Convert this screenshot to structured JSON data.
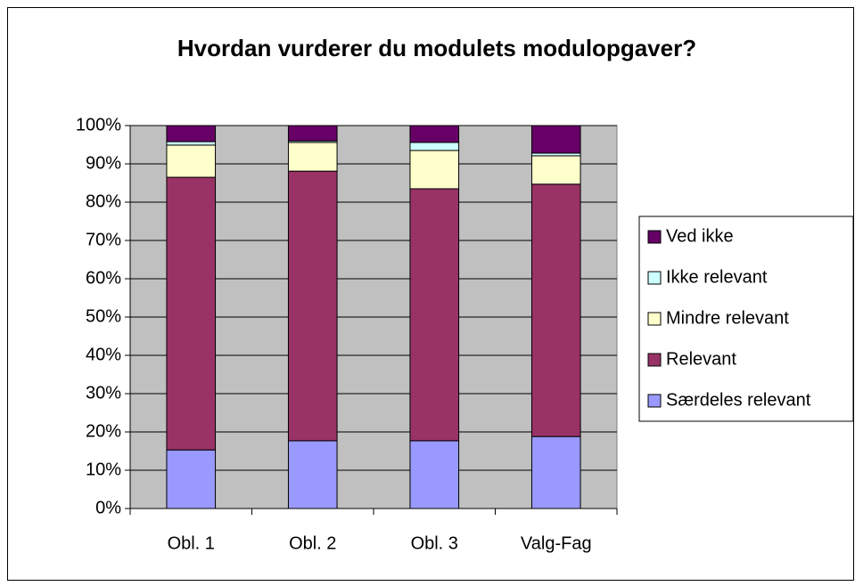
{
  "chart_data": {
    "type": "stacked_bar",
    "title": "Hvordan vurderer du modulets modulopgaver?",
    "categories": [
      "Obl. 1",
      "Obl. 2",
      "Obl. 3",
      "Valg-Fag"
    ],
    "series": [
      {
        "name": "Særdeles relevant",
        "color": "#9999ff",
        "values": [
          15.3,
          17.7,
          17.7,
          18.8
        ]
      },
      {
        "name": "Relevant",
        "color": "#993366",
        "values": [
          71.2,
          70.4,
          65.8,
          65.9
        ]
      },
      {
        "name": "Mindre relevant",
        "color": "#ffffcc",
        "values": [
          8.4,
          7.5,
          10.0,
          7.4
        ]
      },
      {
        "name": "Ikke relevant",
        "color": "#ccffff",
        "values": [
          0.9,
          0.4,
          2.1,
          0.7
        ]
      },
      {
        "name": "Ved ikke",
        "color": "#660066",
        "values": [
          4.2,
          4.0,
          4.4,
          7.2
        ]
      }
    ],
    "ylim": [
      0,
      100
    ],
    "yticks": [
      {
        "value": 0,
        "label": "0%"
      },
      {
        "value": 10,
        "label": "10%"
      },
      {
        "value": 20,
        "label": "20%"
      },
      {
        "value": 30,
        "label": "30%"
      },
      {
        "value": 40,
        "label": "40%"
      },
      {
        "value": 50,
        "label": "50%"
      },
      {
        "value": 60,
        "label": "60%"
      },
      {
        "value": 70,
        "label": "70%"
      },
      {
        "value": 80,
        "label": "80%"
      },
      {
        "value": 90,
        "label": "90%"
      },
      {
        "value": 100,
        "label": "100%"
      }
    ],
    "grid": true,
    "plot_background": "#c0c0c0",
    "legend": "right"
  }
}
